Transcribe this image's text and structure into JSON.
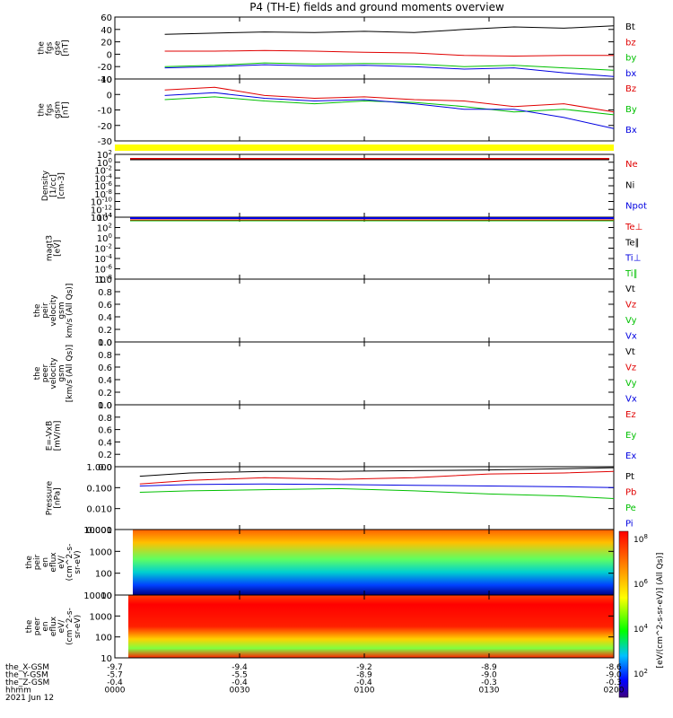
{
  "title": "P4 (TH-E) fields and ground moments overview",
  "colors": {
    "black": "#000000",
    "red": "#e00000",
    "green": "#00c000",
    "blue": "#0000e0",
    "yellow": "#ffff00"
  },
  "chart_data": {
    "type": "line",
    "time_ticks": [
      "0000",
      "0030",
      "0100",
      "0130",
      "0200"
    ],
    "ephemeris": {
      "labels": [
        "the_X-GSM",
        "the_Y-GSM",
        "the_Z-GSM",
        "hhmm",
        "2021 Jun 12"
      ],
      "rows": [
        [
          "-9.7",
          "-9.4",
          "-9.2",
          "-8.9",
          "-8.6"
        ],
        [
          "-5.7",
          "-5.5",
          "-8.9",
          "-9.0",
          "-9.0"
        ],
        [
          "-0.4",
          "-0.4",
          "-0.4",
          "-0.3",
          "-0.3"
        ],
        [
          "0000",
          "0030",
          "0100",
          "0130",
          "0200"
        ]
      ]
    },
    "panels": [
      {
        "key": "fgs_gse",
        "ylabel": [
          "the",
          "fgs",
          "gse",
          "[nT]"
        ],
        "ylim": [
          -40,
          60
        ],
        "ticks": [
          "60",
          "40",
          "20",
          "0",
          "-20",
          "-40"
        ],
        "legend": [
          {
            "label": "Bt",
            "color": "#000000"
          },
          {
            "label": "bz",
            "color": "#e00000"
          },
          {
            "label": "by",
            "color": "#00c000"
          },
          {
            "label": "bx",
            "color": "#0000e0"
          }
        ],
        "series": [
          {
            "name": "Bt",
            "color": "#000000",
            "x": [
              0.1,
              0.2,
              0.3,
              0.4,
              0.5,
              0.6,
              0.7,
              0.8,
              0.9,
              1.0
            ],
            "y": [
              32,
              34,
              36,
              35,
              37,
              35,
              40,
              44,
              42,
              46
            ]
          },
          {
            "name": "bz",
            "color": "#e00000",
            "x": [
              0.1,
              0.2,
              0.3,
              0.4,
              0.5,
              0.6,
              0.7,
              0.8,
              0.9,
              1.0
            ],
            "y": [
              5,
              5,
              6,
              5,
              3,
              2,
              -2,
              -3,
              -2,
              -2
            ]
          },
          {
            "name": "by",
            "color": "#00c000",
            "x": [
              0.1,
              0.2,
              0.3,
              0.4,
              0.5,
              0.6,
              0.7,
              0.8,
              0.9,
              1.0
            ],
            "y": [
              -20,
              -18,
              -14,
              -16,
              -15,
              -16,
              -20,
              -18,
              -22,
              -26
            ]
          },
          {
            "name": "bx",
            "color": "#0000e0",
            "x": [
              0.1,
              0.2,
              0.3,
              0.4,
              0.5,
              0.6,
              0.7,
              0.8,
              0.9,
              1.0
            ],
            "y": [
              -22,
              -20,
              -17,
              -19,
              -18,
              -20,
              -24,
              -22,
              -30,
              -36
            ]
          }
        ]
      },
      {
        "key": "fgs_gsm",
        "ylabel": [
          "the",
          "fgs",
          "gsm",
          "[nT]"
        ],
        "ylim": [
          -35,
          10
        ],
        "ticks": [
          "10",
          "0",
          "-10",
          "-20",
          "-30"
        ],
        "legend": [
          {
            "label": "Bz",
            "color": "#e00000"
          },
          {
            "label": "By",
            "color": "#00c000"
          },
          {
            "label": "Bx",
            "color": "#0000e0"
          }
        ],
        "series": [
          {
            "name": "Bz",
            "color": "#e00000",
            "x": [
              0.1,
              0.2,
              0.3,
              0.4,
              0.5,
              0.6,
              0.7,
              0.8,
              0.9,
              1.0
            ],
            "y": [
              2,
              4,
              -2,
              -4,
              -3,
              -5,
              -6,
              -10,
              -8,
              -14
            ]
          },
          {
            "name": "By",
            "color": "#00c000",
            "x": [
              0.1,
              0.2,
              0.3,
              0.4,
              0.5,
              0.6,
              0.7,
              0.8,
              0.9,
              1.0
            ],
            "y": [
              -5,
              -3,
              -6,
              -8,
              -6,
              -7,
              -10,
              -14,
              -12,
              -16
            ]
          },
          {
            "name": "Bx",
            "color": "#0000e0",
            "x": [
              0.1,
              0.2,
              0.3,
              0.4,
              0.5,
              0.6,
              0.7,
              0.8,
              0.9,
              1.0
            ],
            "y": [
              -2,
              0,
              -4,
              -6,
              -5,
              -8,
              -12,
              -12,
              -18,
              -26
            ]
          }
        ]
      },
      {
        "key": "density",
        "ylabel": [
          "Density",
          "[1/cc]",
          "[cm-3]"
        ],
        "ylim": "log",
        "ticks": [
          "10^2",
          "10^0",
          "10^-2",
          "10^-4",
          "10^-6",
          "10^-8",
          "10^-10",
          "10^-12",
          "10^-14"
        ],
        "legend": [
          {
            "label": "Ne",
            "color": "#e00000"
          },
          {
            "label": "Ni",
            "color": "#000000"
          },
          {
            "label": "Npot",
            "color": "#0000e0"
          }
        ]
      },
      {
        "key": "temperature",
        "ylabel": [
          "magt3",
          "[eV]"
        ],
        "ylim": "log",
        "ticks": [
          "10^4",
          "10^2",
          "10^0",
          "10^-2",
          "10^-4",
          "10^-6",
          "10^-8"
        ],
        "legend": [
          {
            "label": "Te⊥",
            "color": "#e00000"
          },
          {
            "label": "Te∥",
            "color": "#000000"
          },
          {
            "label": "Ti⊥",
            "color": "#0000e0"
          },
          {
            "label": "Ti∥",
            "color": "#00c000"
          }
        ]
      },
      {
        "key": "peir_velocity",
        "ylabel": [
          "the",
          "peir",
          "velocity",
          "gsm",
          "km/s (All Qs)]"
        ],
        "ylim": [
          0,
          1
        ],
        "ticks": [
          "1.0",
          "0.8",
          "0.6",
          "0.4",
          "0.2",
          "0.0"
        ],
        "legend": [
          {
            "label": "Vt",
            "color": "#000000"
          },
          {
            "label": "Vz",
            "color": "#e00000"
          },
          {
            "label": "Vy",
            "color": "#00c000"
          },
          {
            "label": "Vx",
            "color": "#0000e0"
          }
        ]
      },
      {
        "key": "peer_velocity",
        "ylabel": [
          "the",
          "peer",
          "velocity",
          "gsm",
          "[km/s (All Qs)]"
        ],
        "ylim": [
          0,
          1
        ],
        "ticks": [
          "1.0",
          "0.8",
          "0.6",
          "0.4",
          "0.2",
          "0.0"
        ],
        "legend": [
          {
            "label": "Vt",
            "color": "#000000"
          },
          {
            "label": "Vz",
            "color": "#e00000"
          },
          {
            "label": "Vy",
            "color": "#00c000"
          },
          {
            "label": "Vx",
            "color": "#0000e0"
          }
        ]
      },
      {
        "key": "efield",
        "ylabel": [
          "E=-VxB",
          "[mV/m]"
        ],
        "ylim": [
          0,
          1
        ],
        "ticks": [
          "1.0",
          "0.8",
          "0.6",
          "0.4",
          "0.2",
          "0.0"
        ],
        "legend": [
          {
            "label": "Ez",
            "color": "#e00000"
          },
          {
            "label": "Ey",
            "color": "#00c000"
          },
          {
            "label": "Ex",
            "color": "#0000e0"
          }
        ]
      },
      {
        "key": "pressure",
        "ylabel": [
          "Pressure",
          "[nPa]"
        ],
        "ylim": "log",
        "ticks": [
          "1.000",
          "0.100",
          "0.010",
          "0.001"
        ],
        "legend": [
          {
            "label": "Pt",
            "color": "#000000"
          },
          {
            "label": "Pb",
            "color": "#e00000"
          },
          {
            "label": "Pe",
            "color": "#00c000"
          },
          {
            "label": "Pi",
            "color": "#0000e0"
          }
        ],
        "series": [
          {
            "name": "Pt",
            "color": "#000000",
            "x": [
              0.05,
              0.15,
              0.3,
              0.45,
              0.6,
              0.75,
              0.9,
              1.0
            ],
            "y": [
              0.35,
              0.5,
              0.6,
              0.6,
              0.65,
              0.7,
              0.8,
              0.9
            ]
          },
          {
            "name": "Pb",
            "color": "#e00000",
            "x": [
              0.05,
              0.15,
              0.3,
              0.45,
              0.6,
              0.75,
              0.9,
              1.0
            ],
            "y": [
              0.15,
              0.22,
              0.3,
              0.25,
              0.3,
              0.45,
              0.5,
              0.6
            ]
          },
          {
            "name": "Pe",
            "color": "#00c000",
            "x": [
              0.05,
              0.15,
              0.3,
              0.45,
              0.6,
              0.75,
              0.9,
              1.0
            ],
            "y": [
              0.06,
              0.07,
              0.08,
              0.09,
              0.07,
              0.05,
              0.04,
              0.03
            ]
          },
          {
            "name": "Pi",
            "color": "#0000e0",
            "x": [
              0.05,
              0.15,
              0.3,
              0.45,
              0.6,
              0.75,
              0.9,
              1.0
            ],
            "y": [
              0.12,
              0.14,
              0.15,
              0.14,
              0.13,
              0.12,
              0.11,
              0.1
            ]
          }
        ]
      },
      {
        "key": "peir_eflux",
        "ylabel": [
          "the",
          "peir",
          "en",
          "eflux",
          "eV/",
          "(cm^2-s-",
          "sr-eV)"
        ],
        "ylim": "log",
        "ticks": [
          "10000",
          "1000",
          "100",
          "10"
        ],
        "type": "heatmap"
      },
      {
        "key": "peer_eflux",
        "ylabel": [
          "the",
          "peer",
          "en",
          "eflux",
          "eV/",
          "(cm^2-s-",
          "sr-eV)"
        ],
        "ylim": "log",
        "ticks": [
          "10000",
          "1000",
          "100",
          "10"
        ],
        "type": "heatmap"
      }
    ],
    "colorbar": {
      "ticks": [
        "10^8",
        "10^6",
        "10^4",
        "10^2"
      ],
      "label": "[eV/(cm^2-s-sr-eV)] (All Qs)]"
    }
  }
}
